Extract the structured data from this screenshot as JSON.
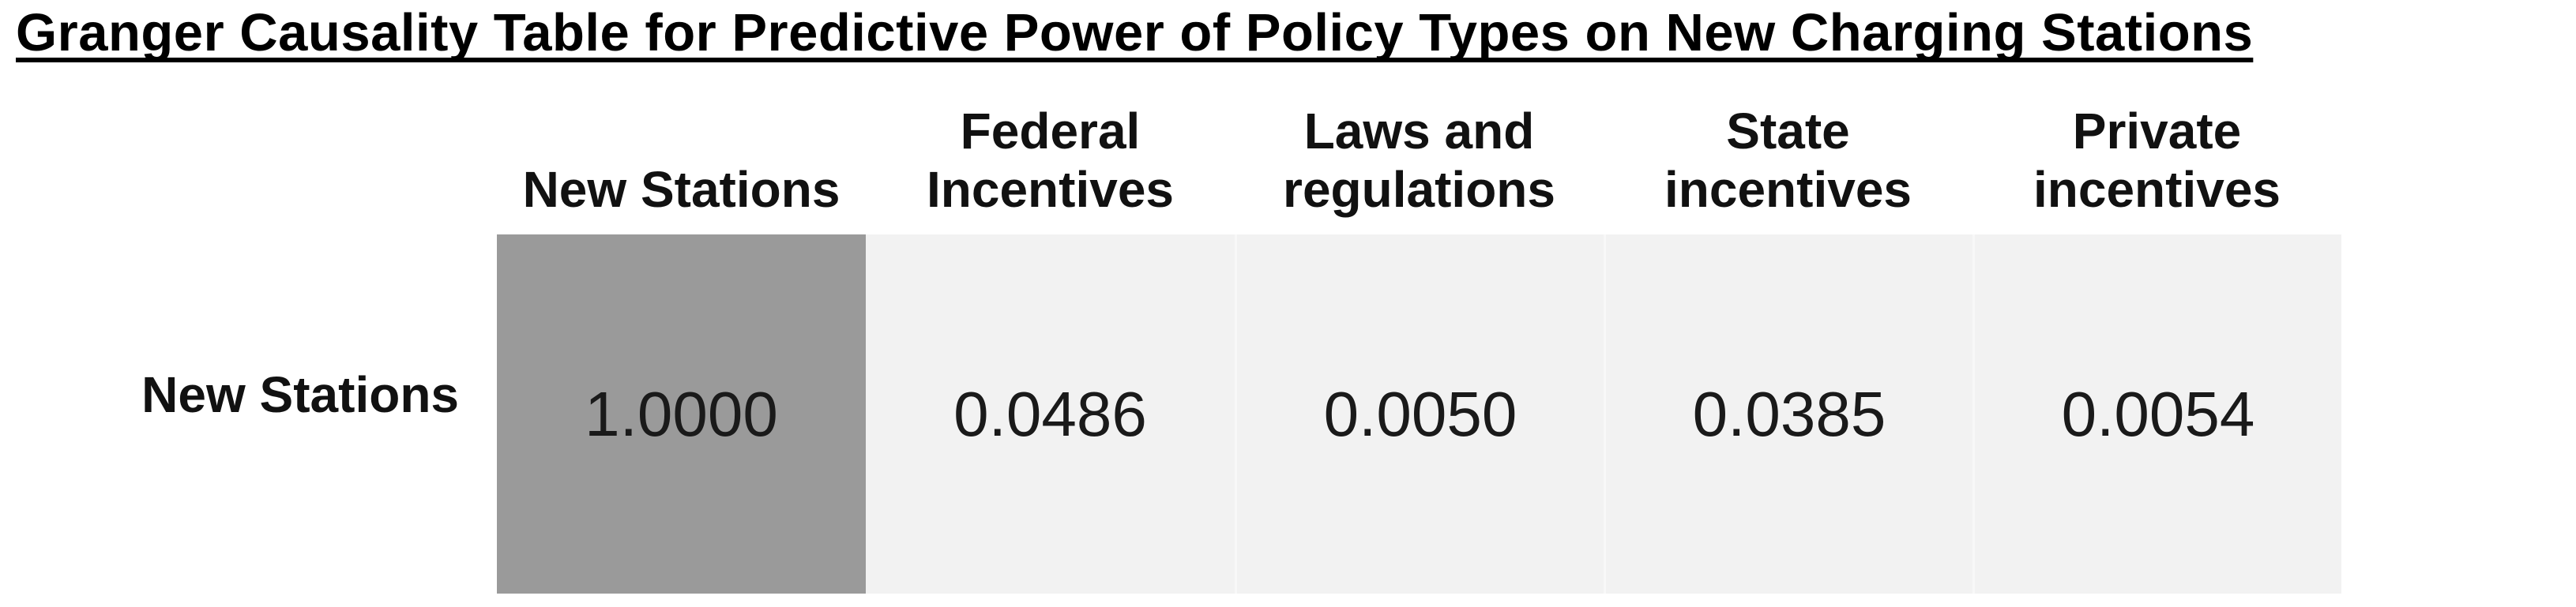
{
  "title": "Granger Causality Table for Predictive Power of Policy Types on New Charging Stations",
  "chart_data": {
    "type": "table",
    "title": "Granger Causality Table for Predictive Power of Policy Types on New Charging Stations",
    "columns": [
      "New Stations",
      "Federal\nIncentives",
      "Laws and\nregulations",
      "State\nincentives",
      "Private\nincentives"
    ],
    "row_labels": [
      "New Stations"
    ],
    "rows": [
      [
        "1.0000",
        "0.0486",
        "0.0050",
        "0.0385",
        "0.0054"
      ]
    ],
    "values_numeric": [
      [
        1.0,
        0.0486,
        0.005,
        0.0385,
        0.0054
      ]
    ],
    "highlighted_cell": {
      "row": "New Stations",
      "column": "New Stations",
      "value": "1.0000"
    },
    "layout": {
      "legend": "none",
      "grid": "off",
      "header_position": "top",
      "row_label_position": "left"
    },
    "colors": {
      "background": "#ffffff",
      "highlight_cell_bg": "#9a9a9a",
      "cell_bg": "#f2f2f2",
      "text": "#1a1a1a",
      "title_text": "#000000"
    }
  }
}
